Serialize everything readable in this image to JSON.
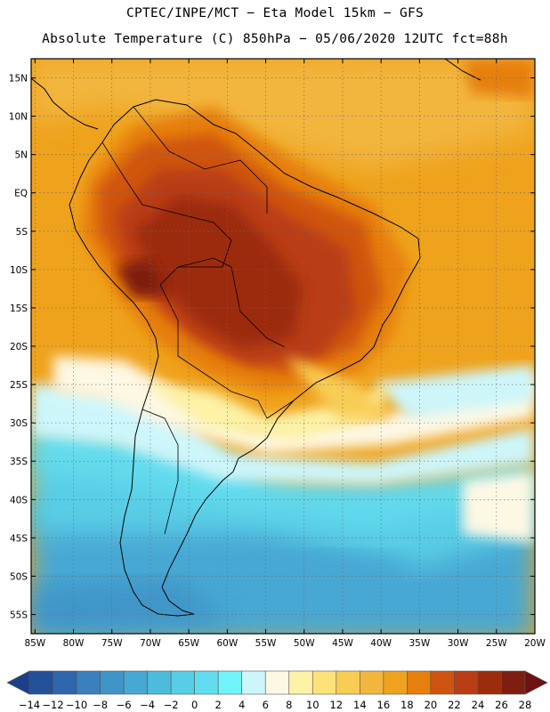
{
  "header": {
    "line1": "CPTEC/INPE/MCT −  Eta Model 15km − GFS",
    "line2": "Absolute Temperature (C) 850hPa − 05/06/2020 12UTC fct=88h"
  },
  "map": {
    "lat_labels": [
      "15N",
      "10N",
      "5N",
      "EQ",
      "5S",
      "10S",
      "15S",
      "20S",
      "25S",
      "30S",
      "35S",
      "40S",
      "45S",
      "50S",
      "55S"
    ],
    "lon_labels": [
      "85W",
      "80W",
      "75W",
      "70W",
      "65W",
      "60W",
      "55W",
      "50W",
      "45W",
      "40W",
      "35W",
      "30W",
      "25W",
      "20W"
    ],
    "lat_range": [
      17.5,
      -57.5
    ],
    "lon_range": [
      -85.5,
      -20
    ]
  },
  "colorbar": {
    "labels": [
      "-14",
      "-12",
      "-10",
      "-8",
      "-6",
      "-4",
      "-2",
      "0",
      "2",
      "4",
      "6",
      "8",
      "10",
      "12",
      "14",
      "16",
      "18",
      "20",
      "22",
      "24",
      "26",
      "28"
    ],
    "colors": [
      "#1d3f8a",
      "#24509a",
      "#2f66ad",
      "#3a80bd",
      "#3f95c8",
      "#46a8d3",
      "#4dbbdc",
      "#58cde6",
      "#62dcef",
      "#6ff5f9",
      "#cdf6fb",
      "#fdf8e4",
      "#fdf2a6",
      "#fde27a",
      "#f8cd54",
      "#f2b53e",
      "#efa21c",
      "#e67f0c",
      "#d0540f",
      "#b93e14",
      "#9c2c0c",
      "#7e1e10",
      "#6c1212"
    ]
  }
}
